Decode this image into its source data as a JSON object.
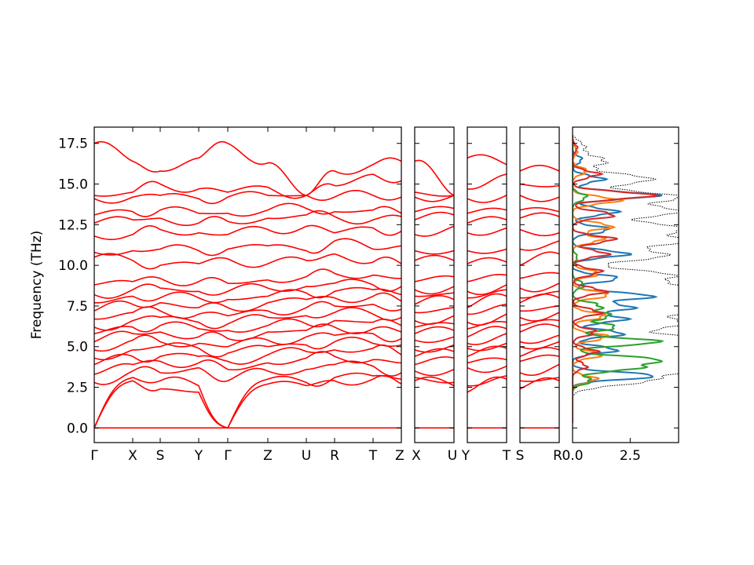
{
  "chart_data": {
    "type": "line",
    "ylabel": "Frequency (THz)",
    "ylim": [
      -0.9,
      18.5
    ],
    "yticks": [
      0.0,
      2.5,
      5.0,
      7.5,
      10.0,
      12.5,
      15.0,
      17.5
    ],
    "ytick_labels": [
      "0.0",
      "2.5",
      "5.0",
      "7.5",
      "10.0",
      "12.5",
      "15.0",
      "17.5"
    ],
    "band_color": "#ff0000",
    "zero_line_color": "#0000cc",
    "band_panels": [
      {
        "name": "main",
        "segments": 9,
        "labels": [
          "Γ",
          "X",
          "S",
          "Y",
          "Γ",
          "Z",
          "U",
          "R",
          "T",
          "Z"
        ],
        "bands_at_nodes": [
          [
            0.0,
            0.0,
            0.0,
            0.0,
            0.0,
            0.0,
            0.0,
            0.0,
            0.0,
            0.0
          ],
          [
            0.0,
            2.9,
            2.4,
            2.2,
            0.0,
            2.7,
            2.6,
            2.9,
            3.0,
            2.7
          ],
          [
            0.0,
            3.1,
            2.9,
            2.6,
            0.0,
            3.0,
            2.8,
            3.1,
            3.2,
            3.0
          ],
          [
            2.8,
            3.5,
            3.4,
            3.7,
            2.9,
            3.5,
            3.6,
            3.9,
            3.8,
            3.4
          ],
          [
            3.3,
            3.9,
            4.1,
            4.0,
            3.6,
            4.0,
            4.3,
            4.4,
            4.2,
            4.0
          ],
          [
            3.9,
            4.4,
            4.4,
            4.4,
            4.1,
            4.5,
            4.7,
            4.8,
            4.9,
            4.5
          ],
          [
            4.3,
            4.8,
            5.0,
            4.9,
            4.6,
            5.0,
            5.1,
            5.3,
            5.2,
            5.1
          ],
          [
            4.8,
            5.4,
            5.3,
            5.2,
            5.0,
            5.4,
            5.6,
            5.7,
            5.8,
            5.5
          ],
          [
            5.3,
            5.8,
            5.9,
            5.6,
            5.5,
            5.9,
            6.0,
            6.2,
            6.1,
            5.9
          ],
          [
            5.8,
            6.2,
            6.3,
            6.1,
            6.0,
            6.3,
            6.4,
            6.6,
            6.5,
            6.3
          ],
          [
            6.2,
            6.6,
            6.8,
            6.5,
            6.4,
            6.8,
            6.9,
            7.1,
            7.0,
            6.8
          ],
          [
            6.7,
            7.1,
            7.2,
            7.0,
            6.9,
            7.2,
            7.4,
            7.5,
            7.6,
            7.3
          ],
          [
            7.2,
            7.6,
            7.7,
            7.4,
            7.4,
            7.7,
            7.9,
            8.0,
            8.1,
            7.8
          ],
          [
            7.7,
            8.1,
            8.0,
            8.0,
            7.9,
            8.1,
            8.3,
            8.4,
            8.5,
            8.2
          ],
          [
            8.2,
            8.5,
            8.6,
            8.4,
            8.4,
            8.6,
            8.7,
            8.9,
            8.8,
            8.7
          ],
          [
            8.8,
            9.0,
            9.2,
            9.0,
            8.9,
            9.1,
            9.3,
            9.5,
            9.4,
            9.2
          ],
          [
            10.5,
            10.3,
            10.0,
            10.1,
            10.4,
            10.1,
            10.3,
            10.7,
            10.2,
            10.1
          ],
          [
            10.8,
            10.9,
            11.0,
            10.9,
            11.0,
            11.2,
            10.9,
            11.5,
            11.0,
            11.2
          ],
          [
            11.8,
            11.9,
            12.2,
            12.0,
            11.9,
            12.2,
            12.4,
            12.0,
            12.3,
            12.1
          ],
          [
            12.6,
            12.8,
            12.9,
            12.6,
            12.7,
            12.9,
            13.1,
            13.0,
            12.8,
            13.0
          ],
          [
            13.1,
            13.3,
            13.4,
            13.2,
            13.2,
            13.4,
            13.5,
            13.3,
            13.4,
            13.2
          ],
          [
            14.1,
            14.2,
            14.3,
            14.1,
            14.2,
            14.3,
            14.3,
            14.2,
            14.3,
            14.2
          ],
          [
            14.3,
            14.5,
            15.0,
            14.7,
            14.5,
            14.8,
            14.3,
            14.9,
            15.6,
            15.2
          ],
          [
            17.5,
            16.4,
            15.8,
            16.6,
            17.5,
            16.3,
            14.3,
            15.8,
            16.2,
            16.4
          ]
        ]
      },
      {
        "name": "X-U",
        "segments": 1,
        "labels": [
          "X",
          "U"
        ],
        "bands_at_nodes": [
          [
            0.0,
            0.0
          ],
          [
            2.9,
            2.6
          ],
          [
            3.1,
            2.8
          ],
          [
            3.5,
            3.6
          ],
          [
            3.9,
            4.3
          ],
          [
            4.4,
            4.7
          ],
          [
            4.8,
            5.1
          ],
          [
            5.4,
            5.6
          ],
          [
            5.8,
            6.0
          ],
          [
            6.2,
            6.4
          ],
          [
            6.6,
            6.9
          ],
          [
            7.1,
            7.4
          ],
          [
            7.6,
            7.9
          ],
          [
            8.1,
            8.3
          ],
          [
            8.5,
            8.7
          ],
          [
            9.0,
            9.3
          ],
          [
            10.3,
            10.3
          ],
          [
            10.9,
            10.9
          ],
          [
            11.9,
            12.4
          ],
          [
            12.8,
            13.1
          ],
          [
            13.3,
            13.5
          ],
          [
            14.2,
            14.3
          ],
          [
            14.5,
            14.3
          ],
          [
            16.4,
            14.3
          ]
        ]
      },
      {
        "name": "Y-T",
        "segments": 1,
        "labels": [
          "Y",
          "T"
        ],
        "bands_at_nodes": [
          [
            0.0,
            0.0
          ],
          [
            2.2,
            3.0
          ],
          [
            2.6,
            3.2
          ],
          [
            3.7,
            3.8
          ],
          [
            4.0,
            4.2
          ],
          [
            4.4,
            4.9
          ],
          [
            4.9,
            5.2
          ],
          [
            5.2,
            5.8
          ],
          [
            5.6,
            6.1
          ],
          [
            6.1,
            6.5
          ],
          [
            6.5,
            7.0
          ],
          [
            7.0,
            7.6
          ],
          [
            7.4,
            8.1
          ],
          [
            8.0,
            8.5
          ],
          [
            8.4,
            8.8
          ],
          [
            9.0,
            9.4
          ],
          [
            10.1,
            10.2
          ],
          [
            10.9,
            11.0
          ],
          [
            12.0,
            12.3
          ],
          [
            12.6,
            12.8
          ],
          [
            13.2,
            13.4
          ],
          [
            14.1,
            14.3
          ],
          [
            14.7,
            15.6
          ],
          [
            16.6,
            16.2
          ]
        ]
      },
      {
        "name": "S-R",
        "segments": 1,
        "labels": [
          "S",
          "R"
        ],
        "bands_at_nodes": [
          [
            0.0,
            0.0
          ],
          [
            2.4,
            2.9
          ],
          [
            2.9,
            3.1
          ],
          [
            3.4,
            3.9
          ],
          [
            4.1,
            4.4
          ],
          [
            4.4,
            4.8
          ],
          [
            5.0,
            5.3
          ],
          [
            5.3,
            5.7
          ],
          [
            5.9,
            6.2
          ],
          [
            6.3,
            6.6
          ],
          [
            6.8,
            7.1
          ],
          [
            7.2,
            7.5
          ],
          [
            7.7,
            8.0
          ],
          [
            8.0,
            8.4
          ],
          [
            8.6,
            8.9
          ],
          [
            9.2,
            9.5
          ],
          [
            10.0,
            10.7
          ],
          [
            11.0,
            11.5
          ],
          [
            12.2,
            12.0
          ],
          [
            12.9,
            13.0
          ],
          [
            13.4,
            13.3
          ],
          [
            14.3,
            14.2
          ],
          [
            15.0,
            14.9
          ],
          [
            15.8,
            15.8
          ]
        ]
      }
    ],
    "dos_panel": {
      "xlim": [
        0.0,
        4.6
      ],
      "xticks": [
        0.0,
        2.5
      ],
      "xtick_labels": [
        "0.0",
        "2.5"
      ],
      "total_color": "#000000",
      "series": [
        {
          "color": "#1f77b4",
          "peaks": [
            [
              3.2,
              3.6
            ],
            [
              4.8,
              1.9
            ],
            [
              5.8,
              2.2
            ],
            [
              6.7,
              2.3
            ],
            [
              7.4,
              2.6
            ],
            [
              8.1,
              3.5
            ],
            [
              9.2,
              2.0
            ],
            [
              10.7,
              2.4
            ],
            [
              12.2,
              1.6
            ],
            [
              13.3,
              1.9
            ],
            [
              14.3,
              3.7
            ],
            [
              15.3,
              1.3
            ],
            [
              16.5,
              0.4
            ]
          ]
        },
        {
          "color": "#ff7f0e",
          "peaks": [
            [
              3.0,
              1.0
            ],
            [
              4.5,
              1.2
            ],
            [
              5.6,
              1.5
            ],
            [
              6.9,
              1.4
            ],
            [
              8.2,
              1.6
            ],
            [
              9.5,
              1.1
            ],
            [
              11.6,
              1.3
            ],
            [
              12.4,
              1.7
            ],
            [
              14.0,
              2.0
            ],
            [
              15.8,
              0.6
            ],
            [
              17.0,
              0.2
            ]
          ]
        },
        {
          "color": "#2ca02c",
          "peaks": [
            [
              2.9,
              0.8
            ],
            [
              3.7,
              2.7
            ],
            [
              4.2,
              3.6
            ],
            [
              5.3,
              3.8
            ],
            [
              6.2,
              1.9
            ],
            [
              6.9,
              1.6
            ],
            [
              7.5,
              1.2
            ],
            [
              8.8,
              0.5
            ],
            [
              10.5,
              0.2
            ],
            [
              14.2,
              0.6
            ]
          ]
        },
        {
          "color": "#d62728",
          "peaks": [
            [
              3.8,
              0.6
            ],
            [
              4.7,
              1.0
            ],
            [
              5.9,
              1.0
            ],
            [
              7.1,
              1.2
            ],
            [
              8.4,
              1.4
            ],
            [
              9.6,
              1.2
            ],
            [
              10.7,
              1.5
            ],
            [
              11.6,
              1.8
            ],
            [
              13.1,
              1.8
            ],
            [
              14.3,
              3.5
            ],
            [
              15.6,
              1.1
            ],
            [
              17.2,
              0.2
            ]
          ]
        }
      ],
      "total_peaks": [
        [
          2.9,
          3.0
        ],
        [
          3.6,
          4.6
        ],
        [
          4.3,
          4.6
        ],
        [
          4.9,
          4.2
        ],
        [
          5.5,
          4.6
        ],
        [
          6.4,
          4.6
        ],
        [
          7.2,
          4.6
        ],
        [
          7.9,
          4.5
        ],
        [
          8.6,
          4.6
        ],
        [
          9.4,
          4.2
        ],
        [
          10.6,
          4.0
        ],
        [
          11.5,
          4.6
        ],
        [
          12.3,
          4.6
        ],
        [
          13.3,
          4.6
        ],
        [
          14.2,
          4.6
        ],
        [
          15.3,
          3.4
        ],
        [
          16.4,
          1.4
        ],
        [
          17.3,
          0.5
        ]
      ]
    }
  }
}
